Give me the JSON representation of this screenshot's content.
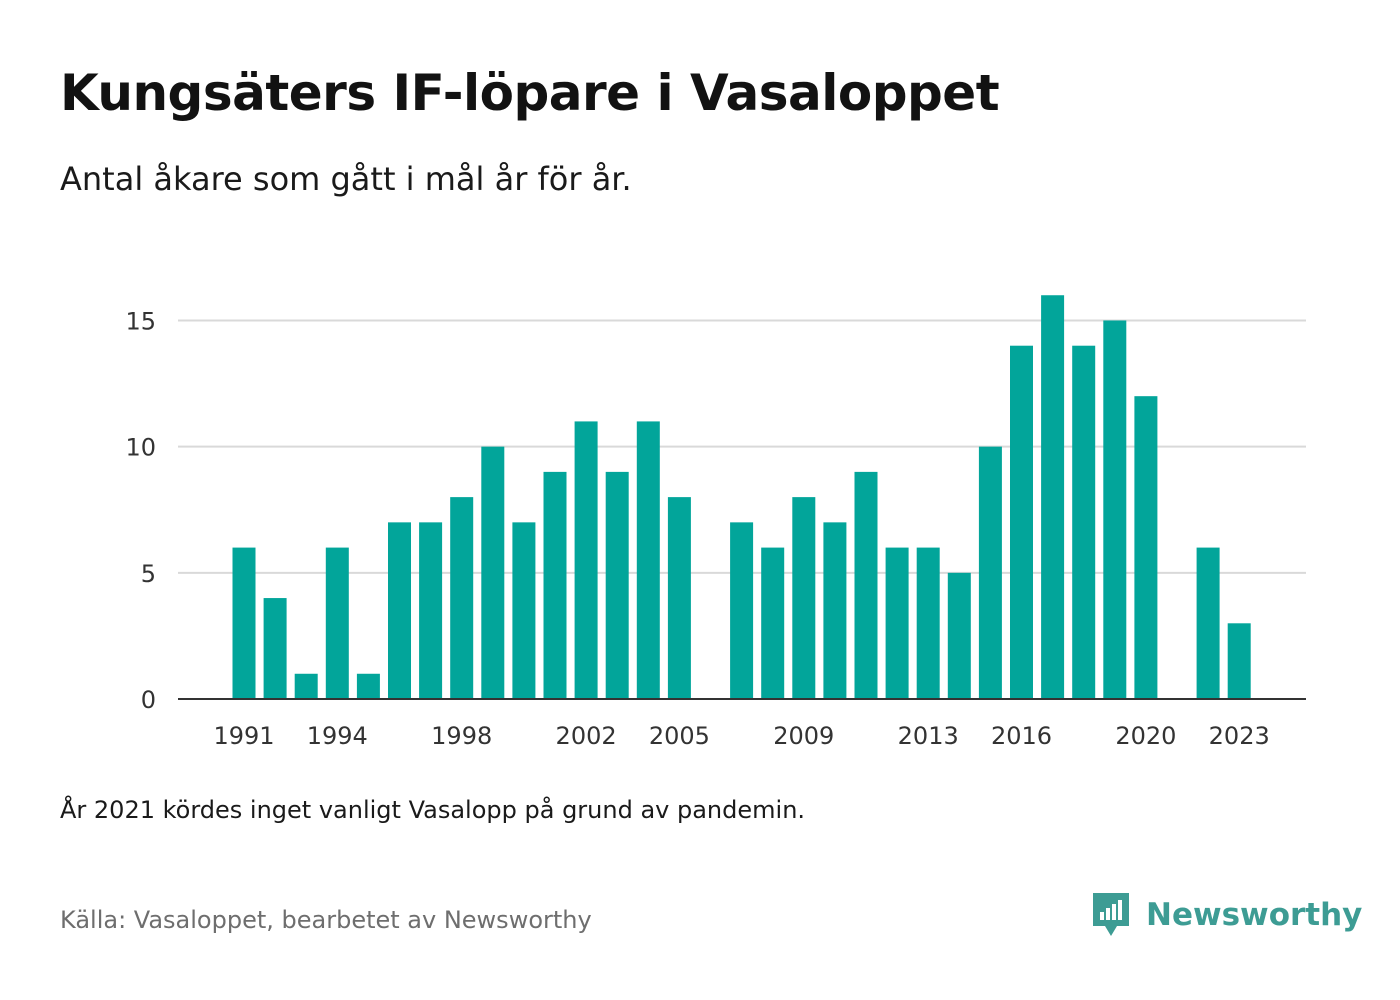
{
  "header": {
    "title": "Kungsäters IF-löpare i Vasaloppet",
    "subtitle": "Antal åkare som gått i mål år för år."
  },
  "footer": {
    "note": "År 2021 kördes inget vanligt Vasalopp på grund av pandemin.",
    "source": "Källa: Vasaloppet, bearbetet av Newsworthy",
    "brand": "Newsworthy"
  },
  "colors": {
    "bar": "#02a59a",
    "brand": "#3d9c94",
    "grid": "#d9d9d9",
    "axis": "#333333"
  },
  "icons": {
    "brand": "newsworthy-logo-icon"
  },
  "chart_data": {
    "type": "bar",
    "title": "Kungsäters IF-löpare i Vasaloppet",
    "subtitle": "Antal åkare som gått i mål år för år.",
    "xlabel": "",
    "ylabel": "",
    "ylim": [
      0,
      17
    ],
    "y_ticks": [
      0,
      5,
      10,
      15
    ],
    "x_tick_labels": [
      "1991",
      "1994",
      "1998",
      "2002",
      "2005",
      "2009",
      "2013",
      "2016",
      "2020",
      "2023"
    ],
    "grid": true,
    "legend": "none",
    "categories": [
      "1991",
      "1992",
      "1993",
      "1994",
      "1995",
      "1996",
      "1997",
      "1998",
      "1999",
      "2000",
      "2001",
      "2002",
      "2003",
      "2004",
      "2005",
      "2006",
      "2007",
      "2008",
      "2009",
      "2010",
      "2011",
      "2012",
      "2013",
      "2014",
      "2015",
      "2016",
      "2017",
      "2018",
      "2019",
      "2020",
      "2021",
      "2022",
      "2023"
    ],
    "values": [
      6,
      4,
      1,
      6,
      1,
      7,
      7,
      8,
      10,
      7,
      9,
      11,
      9,
      11,
      8,
      null,
      7,
      6,
      8,
      7,
      9,
      6,
      6,
      5,
      10,
      14,
      16,
      14,
      15,
      12,
      null,
      6,
      3
    ]
  }
}
